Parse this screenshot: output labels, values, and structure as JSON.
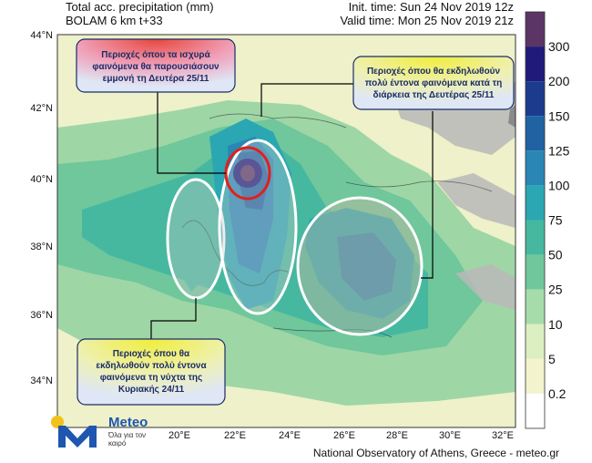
{
  "header": {
    "title_line1": "Total acc. precipitation (mm)",
    "title_line2": "BOLAM 6 km t+33",
    "init_time": "Init. time: Sun 24 Nov 2019 12z",
    "valid_time": "Valid time: Mon 25 Nov 2019 21z"
  },
  "map": {
    "lat_labels": [
      "44°N",
      "42°N",
      "40°N",
      "38°N",
      "36°N",
      "34°N"
    ],
    "lon_labels": [
      "20°E",
      "22°E",
      "24°E",
      "26°E",
      "28°E",
      "30°E",
      "32°E"
    ],
    "colorbar": {
      "levels": [
        "300",
        "200",
        "150",
        "125",
        "100",
        "75",
        "50",
        "25",
        "10",
        "5",
        "0.2"
      ],
      "colors": [
        "#5b3566",
        "#201a7a",
        "#1c3b8c",
        "#1f63a3",
        "#2a86b5",
        "#2aa7b2",
        "#47b8a0",
        "#6fc79b",
        "#a6dcaa",
        "#dcefc1",
        "#f3f4cd",
        "#ffffff"
      ]
    }
  },
  "callouts": {
    "red": {
      "line1": "Περιοχές όπου τα ισχυρά",
      "line2": "φαινόμενα θα παρουσιάσουν",
      "line3": "εμμονή τη Δευτέρα 25/11"
    },
    "blue": {
      "line1": "Περιοχές όπου θα εκδηλωθούν",
      "line2": "πολύ έντονα φαινόμενα κατά τη",
      "line3": "διάρκεια της Δευτέρας 25/11"
    },
    "yellow": {
      "line1": "Περιοχές όπου θα",
      "line2": "εκδηλωθούν πολύ έντονα",
      "line3": "φαινόμενα τη νύχτα της",
      "line4": "Κυριακής 24/11"
    }
  },
  "logo": {
    "name": "Meteo",
    "tagline": "Όλα για τον καιρό"
  },
  "footer": "National Observatory of Athens, Greece - meteo.gr"
}
